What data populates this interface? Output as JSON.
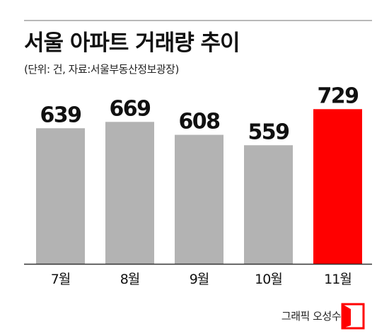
{
  "title": "서울 아파트 거래량 추이",
  "subtitle": "(단위: 건, 자료:서울부동산정보광장)",
  "credit": "그래픽 오성수",
  "colors": {
    "bar": "#b3b3b3",
    "highlight": "#ff0000",
    "axis": "#333333",
    "rule": "#b8b8b8"
  },
  "chart_data": {
    "type": "bar",
    "title": "서울 아파트 거래량 추이",
    "xlabel": "",
    "ylabel": "",
    "unit": "건",
    "categories": [
      "7월",
      "8월",
      "9월",
      "10월",
      "11월"
    ],
    "values": [
      639,
      669,
      608,
      559,
      729
    ],
    "highlight_index": 4,
    "grid": false,
    "legend": "none"
  }
}
